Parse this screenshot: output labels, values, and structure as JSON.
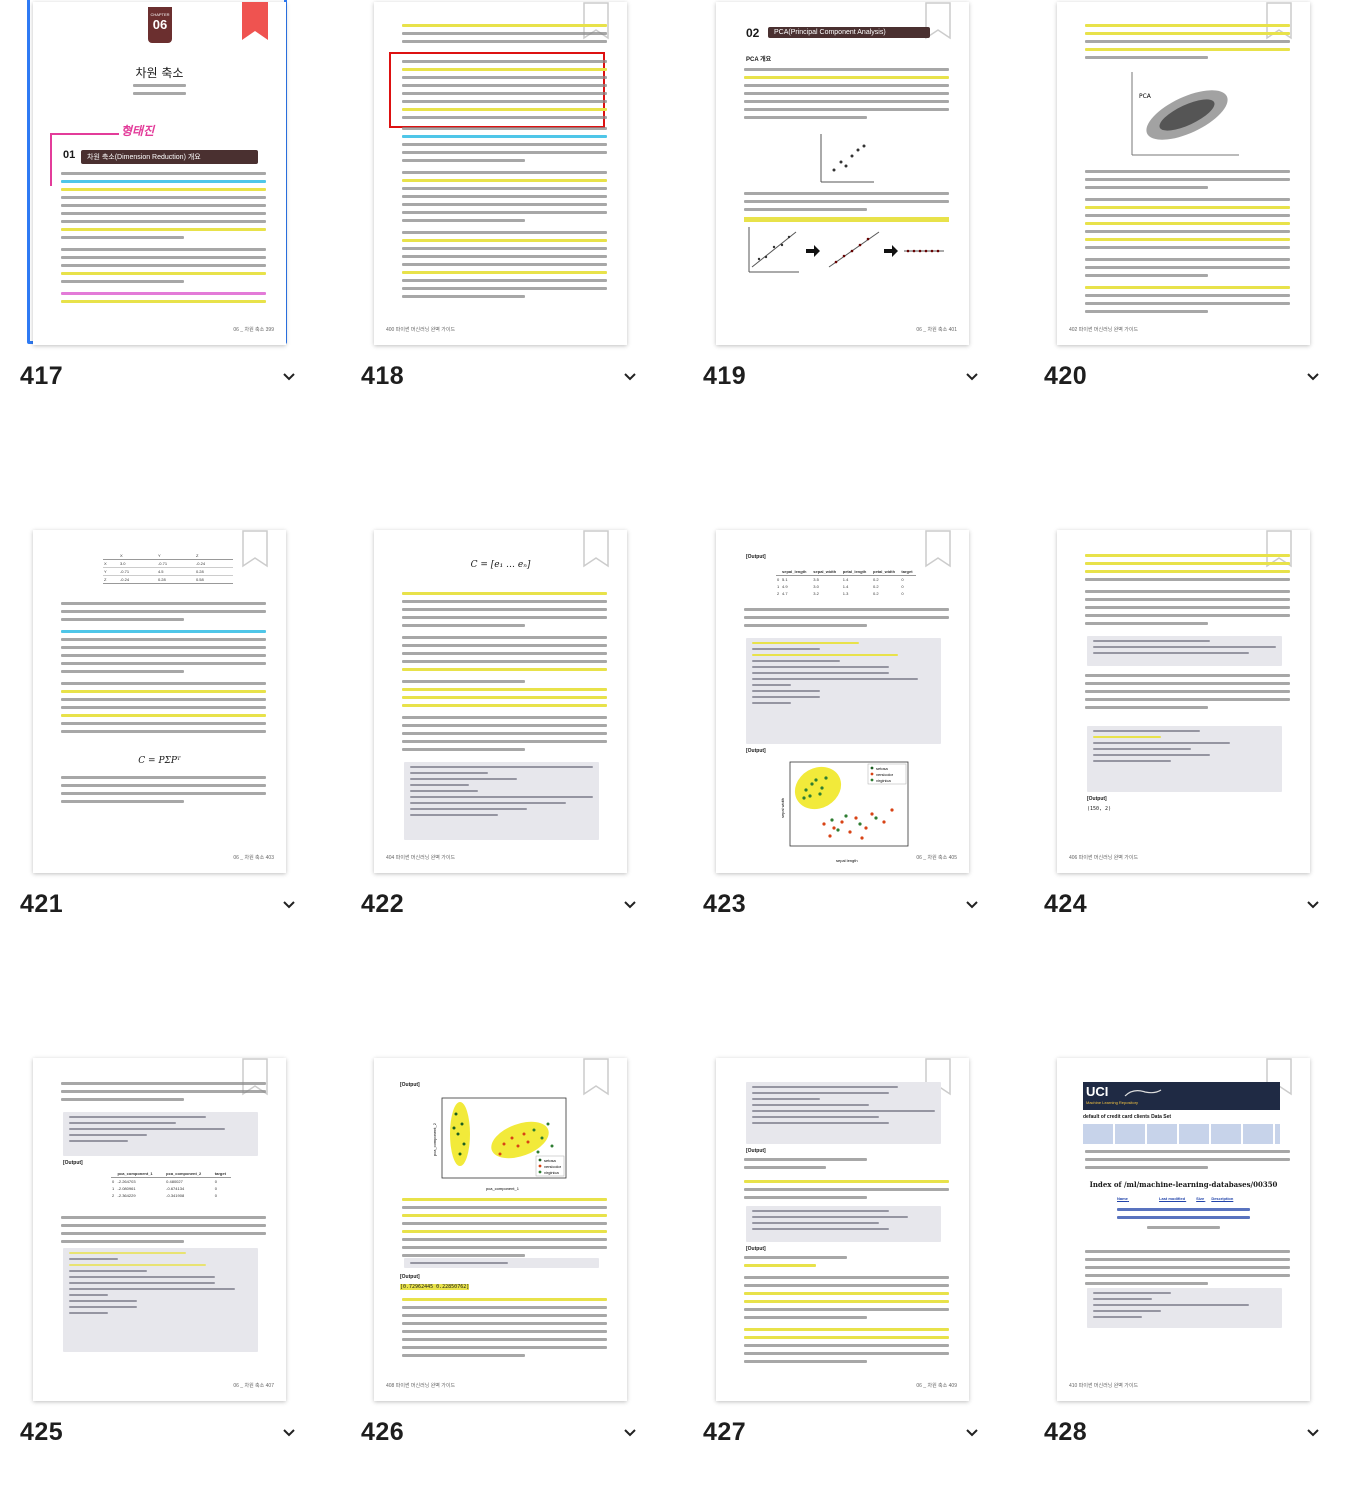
{
  "pages": [
    {
      "label": "417",
      "selected": true
    },
    {
      "label": "418",
      "selected": false
    },
    {
      "label": "419",
      "selected": false
    },
    {
      "label": "420",
      "selected": false
    },
    {
      "label": "421",
      "selected": false
    },
    {
      "label": "422",
      "selected": false
    },
    {
      "label": "423",
      "selected": false
    },
    {
      "label": "424",
      "selected": false
    },
    {
      "label": "425",
      "selected": false
    },
    {
      "label": "426",
      "selected": false
    },
    {
      "label": "427",
      "selected": false
    },
    {
      "label": "428",
      "selected": false
    }
  ],
  "p417": {
    "chapter": "CHAPTER",
    "chapter_num": "06",
    "title": "차원 축소",
    "annotation": "형태진",
    "section_num": "01",
    "section_title": "차원 축소(Dimension Reduction) 개요",
    "footer": "06 _ 차원 축소   399"
  },
  "p418": {
    "footer": "400   파이썬 머신러닝 완벽 가이드"
  },
  "p419": {
    "section_num": "02",
    "section_title": "PCA(Principal Component Analysis)",
    "subhead": "PCA 개요",
    "footer": "06 _ 차원 축소   401"
  },
  "p420": {
    "footer": "402   파이썬 머신러닝 완벽 가이드"
  },
  "p421": {
    "table_headers": [
      "",
      "X",
      "Y",
      "Z"
    ],
    "table_rows": [
      [
        "X",
        "3.0",
        "-0.71",
        "-0.24"
      ],
      [
        "Y",
        "-0.71",
        "4.5",
        "0.28"
      ],
      [
        "Z",
        "-0.24",
        "0.28",
        "0.58"
      ]
    ],
    "formula": "C = PΣPᵀ",
    "footer": "06 _ 차원 축소   403"
  },
  "p422": {
    "formula": "C = [e₁ … eₙ]",
    "footer": "404   파이썬 머신러닝 완벽 가이드"
  },
  "p423": {
    "output": "[Output]",
    "headers": [
      "",
      "sepal_length",
      "sepal_width",
      "petal_length",
      "petal_width",
      "target"
    ],
    "rows": [
      [
        "0",
        "5.1",
        "3.5",
        "1.4",
        "0.2",
        "0"
      ],
      [
        "1",
        "4.9",
        "3.0",
        "1.4",
        "0.2",
        "0"
      ],
      [
        "2",
        "4.7",
        "3.2",
        "1.3",
        "0.2",
        "0"
      ]
    ],
    "legend": [
      "setosa",
      "versicolor",
      "virginica"
    ],
    "xlabel": "sepal length",
    "ylabel": "sepal width",
    "footer": "06 _ 차원 축소   405"
  },
  "p424": {
    "output": "[Output]",
    "shape": "(150, 2)",
    "footer": "406   파이썬 머신러닝 완벽 가이드"
  },
  "p425": {
    "output": "[Output]",
    "headers": [
      "pca_component_1",
      "pca_component_2",
      "target"
    ],
    "rows": [
      [
        "0",
        "-2.264703",
        "0.480027",
        "0"
      ],
      [
        "1",
        "-2.080961",
        "-0.674134",
        "0"
      ],
      [
        "2",
        "-2.364229",
        "-0.341908",
        "0"
      ]
    ],
    "footer": "06 _ 차원 축소   407"
  },
  "p426": {
    "output": "[Output]",
    "legend": [
      "setosa",
      "versicolor",
      "virginica"
    ],
    "xlabel": "pca_component_1",
    "ylabel": "pca_component_2",
    "ratio": "[0.72962445 0.22850762]",
    "footer": "408   파이썬 머신러닝 완벽 가이드"
  },
  "p427": {
    "output": "[Output]",
    "footer": "06 _ 차원 축소   409"
  },
  "p428": {
    "uci": "UCI",
    "repo": "Machine Learning Repository",
    "dataset": "default of credit card clients Data Set",
    "index_title": "Index of /ml/machine-learning-databases/00350",
    "col_name": "Name",
    "col_modified": "Last modified",
    "col_size": "Size",
    "col_desc": "Description",
    "footer": "410   파이썬 머신러닝 완벽 가이드"
  }
}
